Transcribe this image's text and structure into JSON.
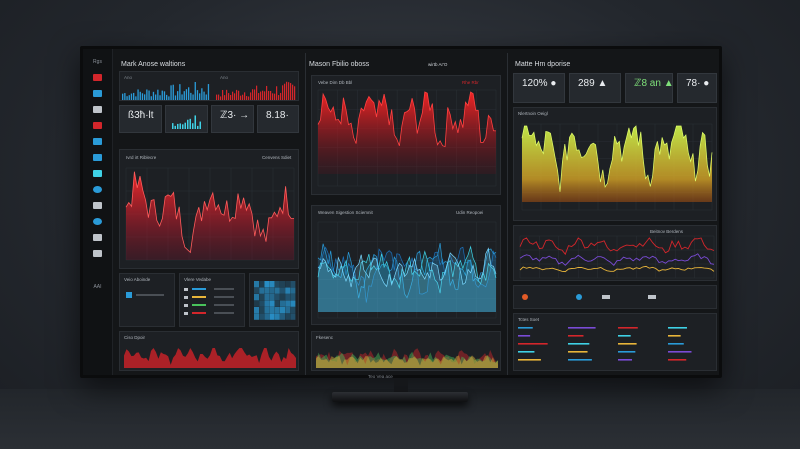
{
  "header": {
    "left_title": "Mark Anose waltions",
    "center_title": "Mason Fbilio oboss",
    "center_tag": "wirtb Ar'O",
    "right_title": "Matte Hm dporise"
  },
  "sidebar": {
    "top_label": "Rgs",
    "bottom_label": "AAI",
    "icons": [
      "red-square",
      "blue-square",
      "white-square",
      "red-square",
      "blue-square",
      "blue-square",
      "cyan-square",
      "blue-square",
      "white-square",
      "blue-square",
      "white-square",
      "white-square"
    ]
  },
  "left": {
    "mini_chart_left_label": "Ano",
    "mini_chart_right_label": "Ano",
    "stats": [
      {
        "value": "ß3ħ·lt",
        "color": "#e9ecef"
      },
      {
        "value": "",
        "color": "#e9ecef"
      },
      {
        "value": "ℤ3· →",
        "color": "#e9ecef"
      },
      {
        "value": "8.18·",
        "color": "#e9ecef"
      }
    ],
    "main_chart_title": "Ivrd irt Riblecre",
    "main_chart_tag": "Cenvens Sdiet",
    "bottom_panel_1": "Veio Aboinde",
    "bottom_panel_2": "Vlere Vedabe",
    "bottom_strip_label": "Ciso Dpoir"
  },
  "center": {
    "top_chart_title": "Vebe Dim Db Bbl",
    "top_chart_tag": "Rhe Rbr",
    "mid_chart_title": "Weaven Sigestion Sciemnit",
    "mid_chart_tag": "Udin Reopoei",
    "bottom_chart_title": "Fkesenc",
    "footer_text": "Teo Vea ace"
  },
  "right": {
    "kpis": [
      {
        "value": "120% ●",
        "color": "#e9ecef"
      },
      {
        "value": "289 ▲",
        "color": "#e9ecef"
      },
      {
        "value": "ℤ8 an ▲",
        "color": "#7fe07a"
      },
      {
        "value": "78· ●",
        "color": "#e9ecef"
      }
    ],
    "area_chart_title": "Nlertnoin Oeigl",
    "line_chart_tag": "Beitnov Berdens",
    "table_title": "Tctes Soet"
  },
  "watermark": "dreamstime",
  "colors": {
    "red": "#d3262b",
    "blue": "#2a9bd8",
    "cyan": "#3fd2e6",
    "lime": "#b6e53a",
    "green": "#49c25b",
    "purple": "#7a4bd6"
  }
}
